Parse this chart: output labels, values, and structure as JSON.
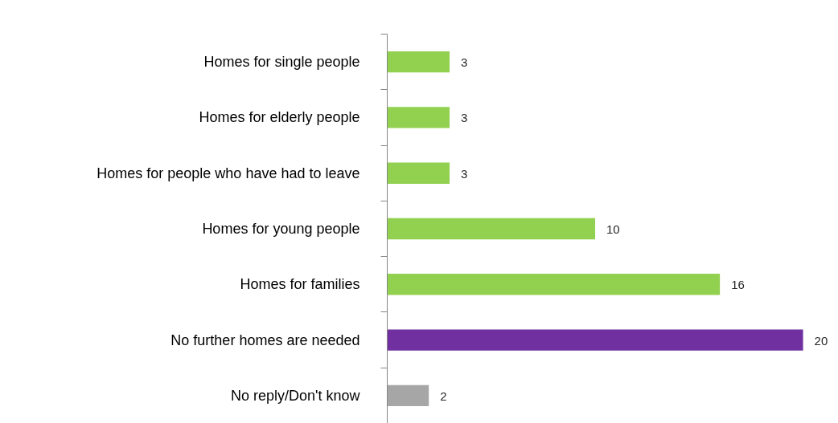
{
  "chart_data": {
    "type": "bar",
    "orientation": "horizontal",
    "categories": [
      "Homes for single people",
      "Homes for elderly people",
      "Homes for people who have had to leave",
      "Homes for young people",
      "Homes for families",
      "No further homes are needed",
      "No reply/Don't know"
    ],
    "values": [
      3,
      3,
      3,
      10,
      16,
      20,
      2
    ],
    "colors": [
      "#92d050",
      "#92d050",
      "#92d050",
      "#92d050",
      "#92d050",
      "#7030a0",
      "#a6a6a6"
    ],
    "data_labels": true,
    "grid": false
  }
}
